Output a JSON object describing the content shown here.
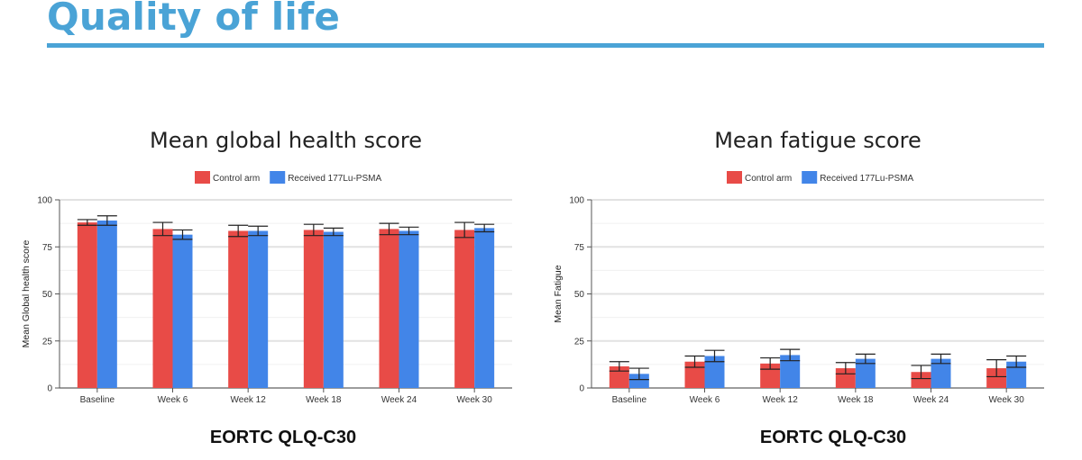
{
  "slide": {
    "title": "Quality of life",
    "caption": "EORTC QLQ-C30"
  },
  "colors": {
    "accent": "#4aa3d6",
    "control": "#e84b47",
    "treated": "#4285e8"
  },
  "chart_data": [
    {
      "type": "bar",
      "title": "Mean global health score",
      "ylabel": "Mean Global health score",
      "xlabel": "",
      "ylim": [
        0,
        100
      ],
      "yticks": [
        0,
        25,
        50,
        75,
        100
      ],
      "grid": true,
      "legend_position": "top-center",
      "categories": [
        "Baseline",
        "Week 6",
        "Week 12",
        "Week 18",
        "Week 24",
        "Week 30"
      ],
      "series": [
        {
          "name": "Control arm",
          "color": "#e84b47",
          "values": [
            88,
            84.5,
            83.5,
            84,
            84.5,
            84
          ],
          "error": [
            1.5,
            3.5,
            3,
            3,
            3,
            4
          ]
        },
        {
          "name": "Received 177Lu-PSMA",
          "color": "#4285e8",
          "values": [
            89,
            81.5,
            83.5,
            83,
            83.5,
            85
          ],
          "error": [
            2.5,
            2.5,
            2.5,
            2,
            2,
            2
          ]
        }
      ]
    },
    {
      "type": "bar",
      "title": "Mean fatigue score",
      "ylabel": "Mean Fatigue",
      "xlabel": "",
      "ylim": [
        0,
        100
      ],
      "yticks": [
        0,
        25,
        50,
        75,
        100
      ],
      "grid": true,
      "legend_position": "top-center",
      "categories": [
        "Baseline",
        "Week 6",
        "Week 12",
        "Week 18",
        "Week 24",
        "Week 30"
      ],
      "series": [
        {
          "name": "Control arm",
          "color": "#e84b47",
          "values": [
            11.5,
            14,
            13,
            10.5,
            8.5,
            10.5
          ],
          "error": [
            2.5,
            3,
            3,
            3,
            3.5,
            4.5
          ]
        },
        {
          "name": "Received 177Lu-PSMA",
          "color": "#4285e8",
          "values": [
            7.5,
            17,
            17.5,
            15.5,
            15.5,
            14
          ],
          "error": [
            3,
            3,
            3,
            2.5,
            2.5,
            3
          ]
        }
      ]
    }
  ]
}
